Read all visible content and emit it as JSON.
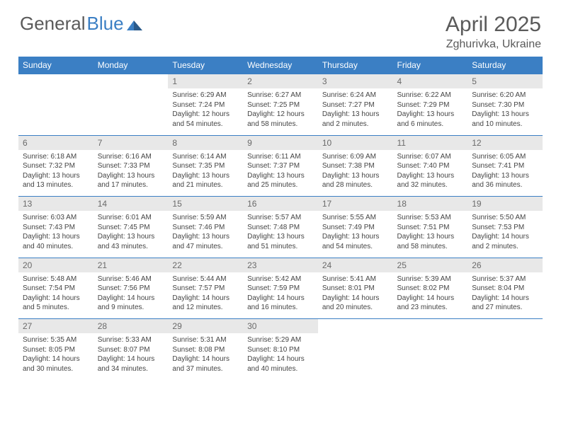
{
  "brand": {
    "name_a": "General",
    "name_b": "Blue"
  },
  "title": "April 2025",
  "location": "Zghurivka, Ukraine",
  "colors": {
    "header_bg": "#3b7fc4",
    "header_text": "#ffffff",
    "daynum_bg": "#e8e8e8",
    "daynum_text": "#6a6a6a",
    "body_text": "#444444",
    "title_text": "#5a5a5a"
  },
  "day_headers": [
    "Sunday",
    "Monday",
    "Tuesday",
    "Wednesday",
    "Thursday",
    "Friday",
    "Saturday"
  ],
  "weeks": [
    {
      "nums": [
        "",
        "",
        "1",
        "2",
        "3",
        "4",
        "5"
      ],
      "cells": [
        "",
        "",
        "Sunrise: 6:29 AM\nSunset: 7:24 PM\nDaylight: 12 hours and 54 minutes.",
        "Sunrise: 6:27 AM\nSunset: 7:25 PM\nDaylight: 12 hours and 58 minutes.",
        "Sunrise: 6:24 AM\nSunset: 7:27 PM\nDaylight: 13 hours and 2 minutes.",
        "Sunrise: 6:22 AM\nSunset: 7:29 PM\nDaylight: 13 hours and 6 minutes.",
        "Sunrise: 6:20 AM\nSunset: 7:30 PM\nDaylight: 13 hours and 10 minutes."
      ]
    },
    {
      "nums": [
        "6",
        "7",
        "8",
        "9",
        "10",
        "11",
        "12"
      ],
      "cells": [
        "Sunrise: 6:18 AM\nSunset: 7:32 PM\nDaylight: 13 hours and 13 minutes.",
        "Sunrise: 6:16 AM\nSunset: 7:33 PM\nDaylight: 13 hours and 17 minutes.",
        "Sunrise: 6:14 AM\nSunset: 7:35 PM\nDaylight: 13 hours and 21 minutes.",
        "Sunrise: 6:11 AM\nSunset: 7:37 PM\nDaylight: 13 hours and 25 minutes.",
        "Sunrise: 6:09 AM\nSunset: 7:38 PM\nDaylight: 13 hours and 28 minutes.",
        "Sunrise: 6:07 AM\nSunset: 7:40 PM\nDaylight: 13 hours and 32 minutes.",
        "Sunrise: 6:05 AM\nSunset: 7:41 PM\nDaylight: 13 hours and 36 minutes."
      ]
    },
    {
      "nums": [
        "13",
        "14",
        "15",
        "16",
        "17",
        "18",
        "19"
      ],
      "cells": [
        "Sunrise: 6:03 AM\nSunset: 7:43 PM\nDaylight: 13 hours and 40 minutes.",
        "Sunrise: 6:01 AM\nSunset: 7:45 PM\nDaylight: 13 hours and 43 minutes.",
        "Sunrise: 5:59 AM\nSunset: 7:46 PM\nDaylight: 13 hours and 47 minutes.",
        "Sunrise: 5:57 AM\nSunset: 7:48 PM\nDaylight: 13 hours and 51 minutes.",
        "Sunrise: 5:55 AM\nSunset: 7:49 PM\nDaylight: 13 hours and 54 minutes.",
        "Sunrise: 5:53 AM\nSunset: 7:51 PM\nDaylight: 13 hours and 58 minutes.",
        "Sunrise: 5:50 AM\nSunset: 7:53 PM\nDaylight: 14 hours and 2 minutes."
      ]
    },
    {
      "nums": [
        "20",
        "21",
        "22",
        "23",
        "24",
        "25",
        "26"
      ],
      "cells": [
        "Sunrise: 5:48 AM\nSunset: 7:54 PM\nDaylight: 14 hours and 5 minutes.",
        "Sunrise: 5:46 AM\nSunset: 7:56 PM\nDaylight: 14 hours and 9 minutes.",
        "Sunrise: 5:44 AM\nSunset: 7:57 PM\nDaylight: 14 hours and 12 minutes.",
        "Sunrise: 5:42 AM\nSunset: 7:59 PM\nDaylight: 14 hours and 16 minutes.",
        "Sunrise: 5:41 AM\nSunset: 8:01 PM\nDaylight: 14 hours and 20 minutes.",
        "Sunrise: 5:39 AM\nSunset: 8:02 PM\nDaylight: 14 hours and 23 minutes.",
        "Sunrise: 5:37 AM\nSunset: 8:04 PM\nDaylight: 14 hours and 27 minutes."
      ]
    },
    {
      "nums": [
        "27",
        "28",
        "29",
        "30",
        "",
        "",
        ""
      ],
      "cells": [
        "Sunrise: 5:35 AM\nSunset: 8:05 PM\nDaylight: 14 hours and 30 minutes.",
        "Sunrise: 5:33 AM\nSunset: 8:07 PM\nDaylight: 14 hours and 34 minutes.",
        "Sunrise: 5:31 AM\nSunset: 8:08 PM\nDaylight: 14 hours and 37 minutes.",
        "Sunrise: 5:29 AM\nSunset: 8:10 PM\nDaylight: 14 hours and 40 minutes.",
        "",
        "",
        ""
      ]
    }
  ]
}
